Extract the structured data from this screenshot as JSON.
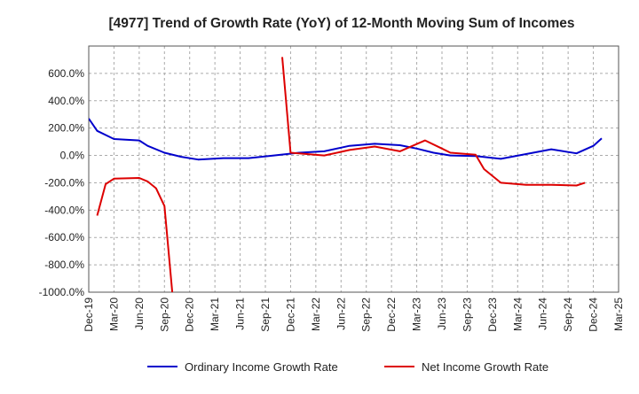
{
  "chart_data": {
    "type": "line",
    "title": "[4977]  Trend of Growth Rate (YoY) of 12-Month Moving Sum of Incomes",
    "xlabel": "",
    "ylabel": "",
    "x_ticks": [
      "Dec-19",
      "Mar-20",
      "Jun-20",
      "Sep-20",
      "Dec-20",
      "Mar-21",
      "Jun-21",
      "Sep-21",
      "Dec-21",
      "Mar-22",
      "Jun-22",
      "Sep-22",
      "Dec-22",
      "Mar-23",
      "Jun-23",
      "Sep-23",
      "Dec-23",
      "Mar-24",
      "Jun-24",
      "Sep-24",
      "Dec-24",
      "Mar-25"
    ],
    "y_ticks": [
      "600.0%",
      "400.0%",
      "200.0%",
      "0.0%",
      "-200.0%",
      "-400.0%",
      "-600.0%",
      "-800.0%",
      "-1000.0%"
    ],
    "ylim": [
      -1000,
      800
    ],
    "grid": true,
    "legend_position": "bottom",
    "series": [
      {
        "name": "Ordinary Income Growth Rate",
        "color": "#0000cc",
        "points": [
          {
            "x": 0,
            "y": 270
          },
          {
            "x": 1,
            "y": 180
          },
          {
            "x": 3,
            "y": 120
          },
          {
            "x": 6,
            "y": 110
          },
          {
            "x": 7,
            "y": 70
          },
          {
            "x": 9,
            "y": 20
          },
          {
            "x": 11,
            "y": -10
          },
          {
            "x": 13,
            "y": -30
          },
          {
            "x": 16,
            "y": -20
          },
          {
            "x": 19,
            "y": -20
          },
          {
            "x": 22,
            "y": 0
          },
          {
            "x": 25,
            "y": 20
          },
          {
            "x": 28,
            "y": 30
          },
          {
            "x": 31,
            "y": 70
          },
          {
            "x": 34,
            "y": 85
          },
          {
            "x": 37,
            "y": 75
          },
          {
            "x": 39,
            "y": 50
          },
          {
            "x": 41,
            "y": 20
          },
          {
            "x": 43,
            "y": 0
          },
          {
            "x": 46,
            "y": -5
          },
          {
            "x": 49,
            "y": -25
          },
          {
            "x": 52,
            "y": 10
          },
          {
            "x": 55,
            "y": 45
          },
          {
            "x": 58,
            "y": 15
          },
          {
            "x": 60,
            "y": 70
          },
          {
            "x": 61,
            "y": 125
          }
        ]
      },
      {
        "name": "Net Income Growth Rate",
        "color": "#dd0000",
        "points": [
          {
            "x": 1,
            "y": -440
          },
          {
            "x": 2,
            "y": -210
          },
          {
            "x": 3,
            "y": -170
          },
          {
            "x": 6,
            "y": -165
          },
          {
            "x": 7,
            "y": -190
          },
          {
            "x": 8,
            "y": -240
          },
          {
            "x": 9,
            "y": -370
          },
          {
            "x": 10,
            "y": -1050
          },
          {
            "x": null,
            "y": null
          },
          {
            "x": 23,
            "y": 720
          },
          {
            "x": 24,
            "y": 20
          },
          {
            "x": 25,
            "y": 15
          },
          {
            "x": 28,
            "y": 0
          },
          {
            "x": 31,
            "y": 40
          },
          {
            "x": 34,
            "y": 65
          },
          {
            "x": 37,
            "y": 30
          },
          {
            "x": 40,
            "y": 110
          },
          {
            "x": 42,
            "y": 50
          },
          {
            "x": 43,
            "y": 20
          },
          {
            "x": 46,
            "y": 5
          },
          {
            "x": 47,
            "y": -100
          },
          {
            "x": 49,
            "y": -200
          },
          {
            "x": 52,
            "y": -215
          },
          {
            "x": 55,
            "y": -215
          },
          {
            "x": 58,
            "y": -220
          },
          {
            "x": 59,
            "y": -200
          }
        ]
      }
    ]
  }
}
